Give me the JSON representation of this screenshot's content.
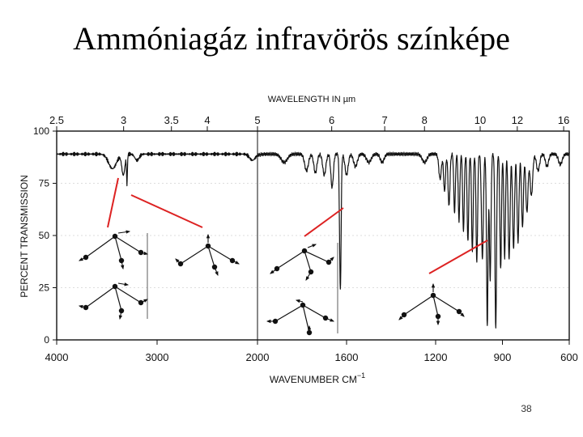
{
  "slide": {
    "title": "Ammóniagáz infravörös színképe",
    "page_number": "38"
  },
  "chart_data": {
    "type": "line",
    "title": "",
    "top_axis_label": "WAVELENGTH IN µm",
    "top_ticks": [
      2.5,
      3,
      3.5,
      4,
      5,
      6,
      7,
      8,
      10,
      12,
      16
    ],
    "top_tick_labels": [
      "2.5",
      "3",
      "3.5",
      "4",
      "5",
      "6",
      "7",
      "8",
      "10",
      "12",
      "16"
    ],
    "xlabel": "WAVENUMBER  CM",
    "xlabel_exponent": "−1",
    "ylabel": "PERCENT TRANSMISSION",
    "xlim": [
      4000,
      600
    ],
    "ylim": [
      0,
      100
    ],
    "x_break": 2000,
    "x_ticks": [
      4000,
      3000,
      2000,
      1600,
      1200,
      900,
      600
    ],
    "x_tick_labels": [
      "4000",
      "3000",
      "2000",
      "1600",
      "1200",
      "900",
      "600"
    ],
    "y_ticks": [
      0,
      25,
      50,
      75,
      100
    ],
    "y_tick_labels": [
      "0",
      "25",
      "50",
      "75",
      "100"
    ],
    "baseline_transmission": 89,
    "bands": [
      {
        "center": 3444,
        "depth": 7,
        "width": 55
      },
      {
        "center": 3336,
        "depth": 10,
        "width": 22
      },
      {
        "center": 3300,
        "depth": 14,
        "width": 6
      },
      {
        "center": 3200,
        "depth": 3,
        "width": 30
      },
      {
        "center": 2050,
        "depth": 3,
        "width": 40
      },
      {
        "center": 1880,
        "depth": 4,
        "width": 20
      },
      {
        "center": 1780,
        "depth": 8,
        "width": 12
      },
      {
        "center": 1740,
        "depth": 9,
        "width": 10
      },
      {
        "center": 1700,
        "depth": 10,
        "width": 10
      },
      {
        "center": 1665,
        "depth": 16,
        "width": 8
      },
      {
        "center": 1628,
        "depth": 65,
        "width": 5
      },
      {
        "center": 1600,
        "depth": 10,
        "width": 10
      },
      {
        "center": 1560,
        "depth": 6,
        "width": 12
      },
      {
        "center": 1500,
        "depth": 4,
        "width": 15
      },
      {
        "center": 1440,
        "depth": 4,
        "width": 12
      },
      {
        "center": 1250,
        "depth": 4,
        "width": 15
      },
      {
        "center": 1180,
        "depth": 12,
        "width": 8
      },
      {
        "center": 1160,
        "depth": 18,
        "width": 6
      },
      {
        "center": 1140,
        "depth": 25,
        "width": 6
      },
      {
        "center": 1115,
        "depth": 28,
        "width": 5
      },
      {
        "center": 1095,
        "depth": 32,
        "width": 5
      },
      {
        "center": 1075,
        "depth": 37,
        "width": 5
      },
      {
        "center": 1055,
        "depth": 42,
        "width": 5
      },
      {
        "center": 1035,
        "depth": 47,
        "width": 5
      },
      {
        "center": 1015,
        "depth": 52,
        "width": 5
      },
      {
        "center": 990,
        "depth": 50,
        "width": 6
      },
      {
        "center": 968,
        "depth": 82,
        "width": 5
      },
      {
        "center": 955,
        "depth": 60,
        "width": 5
      },
      {
        "center": 930,
        "depth": 84,
        "width": 5
      },
      {
        "center": 908,
        "depth": 55,
        "width": 5
      },
      {
        "center": 890,
        "depth": 50,
        "width": 5
      },
      {
        "center": 870,
        "depth": 50,
        "width": 6
      },
      {
        "center": 850,
        "depth": 45,
        "width": 6
      },
      {
        "center": 830,
        "depth": 42,
        "width": 6
      },
      {
        "center": 810,
        "depth": 35,
        "width": 6
      },
      {
        "center": 790,
        "depth": 28,
        "width": 7
      },
      {
        "center": 770,
        "depth": 20,
        "width": 8
      },
      {
        "center": 740,
        "depth": 8,
        "width": 10
      },
      {
        "center": 700,
        "depth": 6,
        "width": 10
      },
      {
        "center": 640,
        "depth": 5,
        "width": 12
      }
    ]
  },
  "diagrams": [
    {
      "name": "vibration-diagram-nh-stretch-symmetric"
    },
    {
      "name": "vibration-diagram-nh-stretch-asymmetric"
    },
    {
      "name": "vibration-diagram-bend-degenerate"
    },
    {
      "name": "vibration-diagram-bend-scissor-a"
    },
    {
      "name": "vibration-diagram-bend-scissor-b"
    },
    {
      "name": "vibration-diagram-umbrella"
    }
  ],
  "colors": {
    "spectrum": "#111111",
    "pointer": "#dd2222",
    "diagram": "#111111"
  }
}
